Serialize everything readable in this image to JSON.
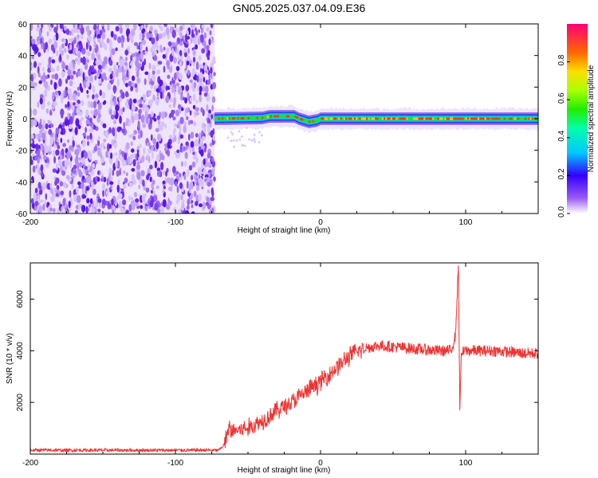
{
  "figure": {
    "title": "GN05.2025.037.04.09.E36"
  },
  "chart_data": [
    {
      "type": "heatmap",
      "xlabel": "Height of straight line (km)",
      "ylabel": "Frequency (Hz)",
      "xlim": [
        -200,
        150
      ],
      "ylim": [
        -60,
        60
      ],
      "xticks": [
        "-200",
        "-100",
        "0",
        "100"
      ],
      "xtick_values": [
        -200,
        -100,
        0,
        100
      ],
      "yticks": [
        "-60",
        "-40",
        "-20",
        "0",
        "20",
        "40",
        "60"
      ],
      "ytick_values": [
        -60,
        -40,
        -20,
        0,
        20,
        40,
        60
      ],
      "noise_region_x": [
        -200,
        -73
      ],
      "carrier_track": [
        {
          "x": -73,
          "f": 0
        },
        {
          "x": -40,
          "f": 0.5
        },
        {
          "x": -35,
          "f": 1.5
        },
        {
          "x": -18,
          "f": 1.5
        },
        {
          "x": -15,
          "f": 0
        },
        {
          "x": -8,
          "f": -2
        },
        {
          "x": -2,
          "f": -1
        },
        {
          "x": 0,
          "f": 0
        },
        {
          "x": 150,
          "f": 0
        }
      ],
      "colorbar": {
        "label": "Normalized spectral amplitude",
        "range": [
          0,
          1
        ],
        "ticks": [
          "0.0",
          "0.2",
          "0.4",
          "0.6",
          "0.8"
        ],
        "tick_values": [
          0,
          0.2,
          0.4,
          0.6,
          0.8
        ]
      }
    },
    {
      "type": "line",
      "xlabel": "Height of straight line (km)",
      "ylabel": "SNR (10 * v/v)",
      "xlim": [
        -200,
        150
      ],
      "ylim": [
        0,
        7400
      ],
      "xticks": [
        "-200",
        "-100",
        "0",
        "100"
      ],
      "xtick_values": [
        -200,
        -100,
        0,
        100
      ],
      "yticks": [
        "2000",
        "4000",
        "6000"
      ],
      "ytick_values": [
        2000,
        4000,
        6000
      ],
      "line_color": "#ee3333",
      "series": [
        {
          "x": [
            -200,
            -150,
            -100,
            -70,
            -66,
            -63,
            -60,
            -50,
            -40,
            -30,
            -20,
            -10,
            0,
            10,
            20,
            30,
            40,
            60,
            80,
            90,
            93,
            95,
            96,
            97,
            100,
            120,
            140,
            150
          ],
          "y": [
            150,
            150,
            150,
            150,
            400,
            1000,
            900,
            1000,
            1300,
            1700,
            2000,
            2400,
            2800,
            3300,
            3800,
            4100,
            4200,
            4100,
            4000,
            4000,
            4600,
            7300,
            1700,
            3900,
            4000,
            4000,
            3900,
            3900
          ]
        }
      ]
    }
  ]
}
